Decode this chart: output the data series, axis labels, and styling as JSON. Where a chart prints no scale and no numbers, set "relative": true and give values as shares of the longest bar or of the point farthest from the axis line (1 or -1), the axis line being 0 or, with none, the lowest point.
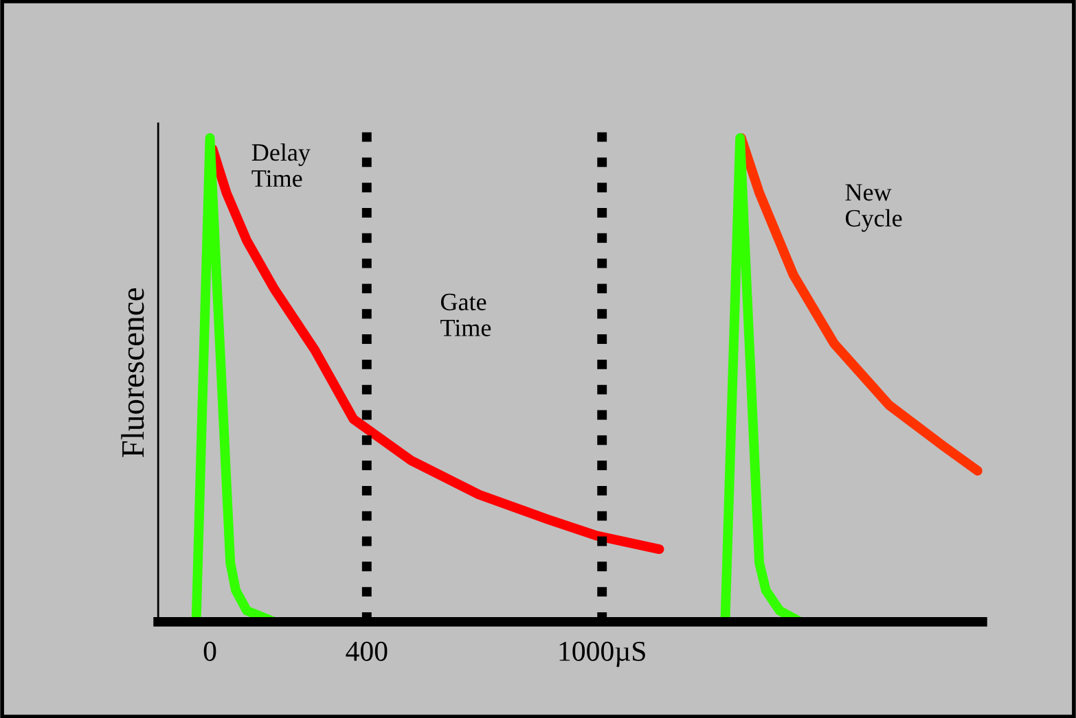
{
  "chart_data": {
    "type": "line",
    "relative": true,
    "ylabel": "Fluorescence",
    "xlim": [
      -132,
      1970
    ],
    "xticks": [
      0,
      400,
      {
        "value": 1000,
        "label": "1000µS"
      }
    ],
    "tick_labels": "x",
    "grid": false,
    "legend": false,
    "marker": "none",
    "line_style": "solid",
    "series": [
      {
        "color": "#ff0000",
        "x": [
          7,
          42,
          94,
          164,
          268,
          366,
          512,
          686,
          861,
          986,
          1146
        ],
        "values": [
          0.977,
          0.887,
          0.788,
          0.688,
          0.561,
          0.419,
          0.334,
          0.263,
          0.212,
          0.178,
          0.15
        ]
      },
      {
        "color": "#33ff00",
        "x": [
          -35,
          0,
          52,
          66,
          94,
          164
        ],
        "values": [
          0,
          1,
          0.122,
          0.065,
          0.023,
          0
        ]
      },
      {
        "color": "#ff3300",
        "x": [
          1355,
          1401,
          1488,
          1592,
          1732,
          1871,
          1958
        ],
        "values": [
          1,
          0.887,
          0.717,
          0.575,
          0.448,
          0.363,
          0.312
        ]
      },
      {
        "color": "#33ff00",
        "x": [
          1314,
          1352,
          1401,
          1418,
          1453,
          1505
        ],
        "values": [
          0,
          1,
          0.122,
          0.065,
          0.023,
          0
        ]
      }
    ],
    "ref_lines": [
      {
        "axis": "x",
        "value": 400,
        "color": "#000000",
        "line_style": "dotted"
      },
      {
        "axis": "x",
        "value": 1000,
        "color": "#000000",
        "line_style": "dotted"
      }
    ],
    "annotations": [
      "Delay\nTime",
      "Gate\nTime",
      "New\nCycle"
    ]
  }
}
